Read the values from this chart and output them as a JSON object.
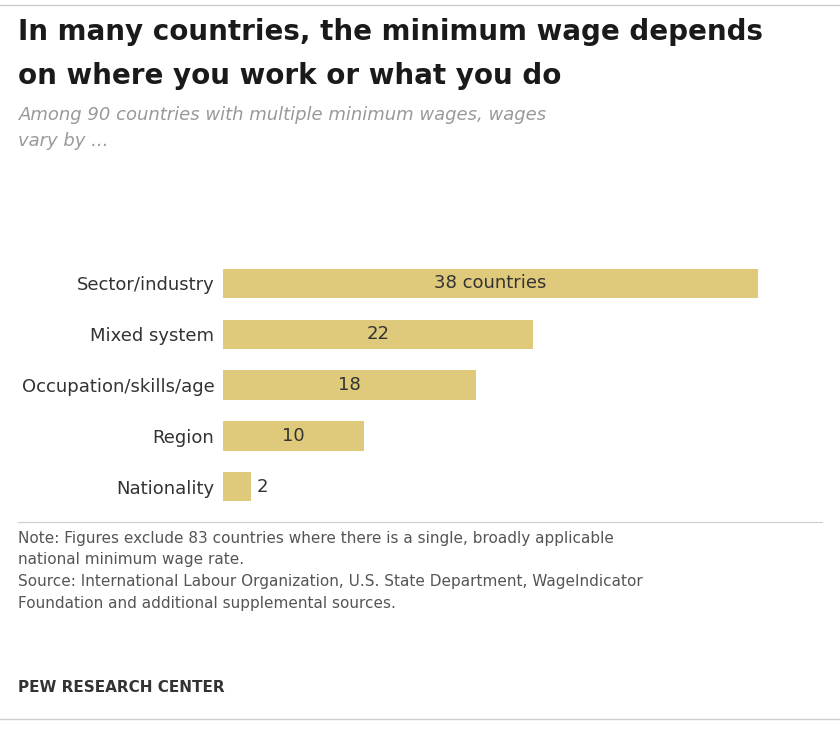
{
  "title_line1": "In many countries, the minimum wage depends",
  "title_line2": "on where you work or what you do",
  "subtitle": "Among 90 countries with multiple minimum wages, wages\nvary by ...",
  "categories": [
    "Sector/industry",
    "Mixed system",
    "Occupation/skills/age",
    "Region",
    "Nationality"
  ],
  "values": [
    38,
    22,
    18,
    10,
    2
  ],
  "bar_labels": [
    "38 countries",
    "22",
    "18",
    "10",
    "2"
  ],
  "bar_color": "#DFC97A",
  "xlim": [
    0,
    42
  ],
  "note_text": "Note: Figures exclude 83 countries where there is a single, broadly applicable\nnational minimum wage rate.\nSource: International Labour Organization, U.S. State Department, WageIndicator\nFoundation and additional supplemental sources.",
  "footer_text": "PEW RESEARCH CENTER",
  "title_fontsize": 20,
  "subtitle_fontsize": 13,
  "label_fontsize": 13,
  "bar_label_fontsize": 13,
  "note_fontsize": 11,
  "footer_fontsize": 11,
  "background_color": "#ffffff",
  "title_color": "#1a1a1a",
  "subtitle_color": "#999999",
  "note_color": "#555555",
  "footer_color": "#333333",
  "bar_label_color": "#333333",
  "category_color": "#333333"
}
